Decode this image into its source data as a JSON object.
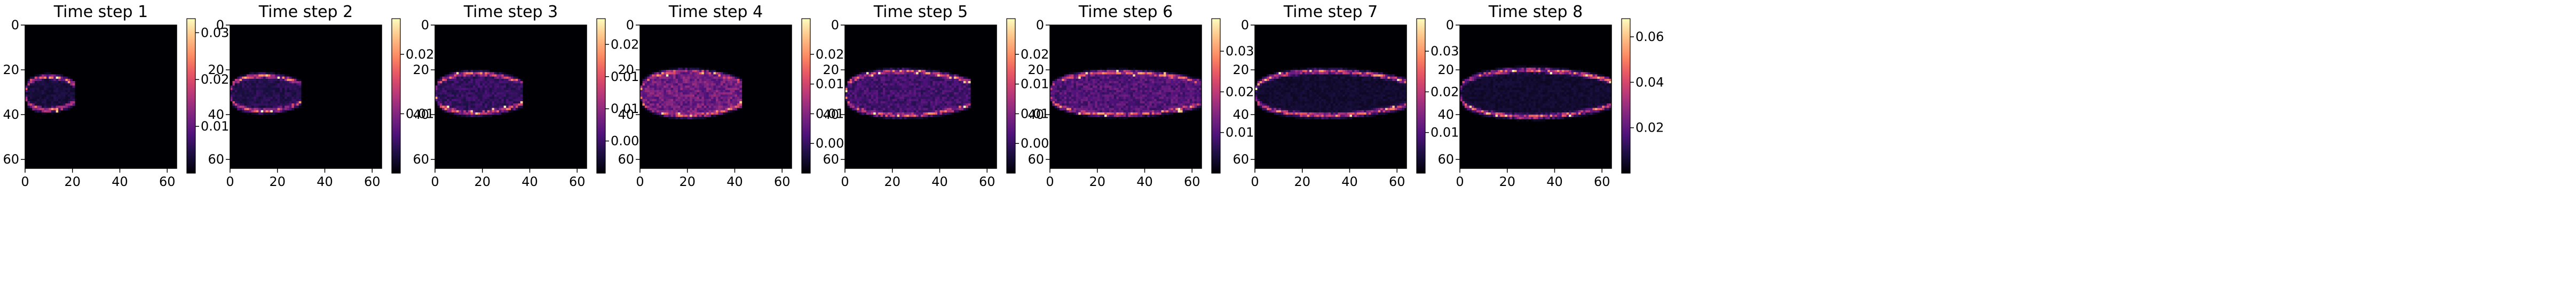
{
  "chart_data": [
    {
      "type": "heatmap",
      "title": "Time step 1",
      "xlim": [
        0,
        64
      ],
      "ylim": [
        64,
        0
      ],
      "xticks": [
        0,
        20,
        40,
        60
      ],
      "yticks": [
        0,
        20,
        40,
        60
      ],
      "colorbar": {
        "ticks": [
          0.01,
          0.02,
          0.03
        ],
        "tick_labels": [
          "0.01",
          "0.02",
          "0.03"
        ],
        "vmin": 0.0,
        "vmax": 0.033
      },
      "colormap": "magma",
      "plume": {
        "length": 20,
        "max_width": 10,
        "amplitude": 0.033,
        "interior": 0.15
      }
    },
    {
      "type": "heatmap",
      "title": "Time step 2",
      "xlim": [
        0,
        64
      ],
      "ylim": [
        64,
        0
      ],
      "xticks": [
        0,
        20,
        40,
        60
      ],
      "yticks": [
        0,
        20,
        40,
        60
      ],
      "colorbar": {
        "ticks": [
          0.01,
          0.02
        ],
        "tick_labels": [
          "0.01",
          "0.02"
        ],
        "vmin": 0.0,
        "vmax": 0.026
      },
      "colormap": "magma",
      "plume": {
        "length": 29,
        "max_width": 11,
        "amplitude": 0.026,
        "interior": 0.2
      }
    },
    {
      "type": "heatmap",
      "title": "Time step 3",
      "xlim": [
        0,
        64
      ],
      "ylim": [
        64,
        0
      ],
      "xticks": [
        0,
        20,
        40,
        60
      ],
      "yticks": [
        0,
        20,
        40,
        60
      ],
      "colorbar": {
        "ticks": [
          0.005,
          0.01,
          0.015,
          0.02
        ],
        "tick_labels": [
          "0.005",
          "0.010",
          "0.015",
          "0.020"
        ],
        "vmin": 0.0,
        "vmax": 0.024
      },
      "colormap": "magma",
      "plume": {
        "length": 36,
        "max_width": 13,
        "amplitude": 0.024,
        "interior": 0.25
      }
    },
    {
      "type": "heatmap",
      "title": "Time step 4",
      "xlim": [
        0,
        64
      ],
      "ylim": [
        64,
        0
      ],
      "xticks": [
        0,
        20,
        40,
        60
      ],
      "yticks": [
        0,
        20,
        40,
        60
      ],
      "colorbar": {
        "ticks": [
          0.005,
          0.01,
          0.015,
          0.02
        ],
        "tick_labels": [
          "0.005",
          "0.010",
          "0.015",
          "0.020"
        ],
        "vmin": 0.0,
        "vmax": 0.026
      },
      "colormap": "magma",
      "plume": {
        "length": 42,
        "max_width": 15,
        "amplitude": 0.026,
        "interior": 0.45
      }
    },
    {
      "type": "heatmap",
      "title": "Time step 5",
      "xlim": [
        0,
        64
      ],
      "ylim": [
        64,
        0
      ],
      "xticks": [
        0,
        20,
        40,
        60
      ],
      "yticks": [
        0,
        20,
        40,
        60
      ],
      "colorbar": {
        "ticks": [
          0.005,
          0.01,
          0.015,
          0.02
        ],
        "tick_labels": [
          "0.005",
          "0.010",
          "0.015",
          "0.020"
        ],
        "vmin": 0.0,
        "vmax": 0.026
      },
      "colormap": "magma",
      "plume": {
        "length": 52,
        "max_width": 15,
        "amplitude": 0.026,
        "interior": 0.3
      }
    },
    {
      "type": "heatmap",
      "title": "Time step 6",
      "xlim": [
        0,
        64
      ],
      "ylim": [
        64,
        0
      ],
      "xticks": [
        0,
        20,
        40,
        60
      ],
      "yticks": [
        0,
        20,
        40,
        60
      ],
      "colorbar": {
        "ticks": [
          0.01,
          0.02,
          0.03
        ],
        "tick_labels": [
          "0.01",
          "0.02",
          "0.03"
        ],
        "vmin": 0.0,
        "vmax": 0.038
      },
      "colormap": "magma",
      "plume": {
        "length": 63,
        "max_width": 14,
        "amplitude": 0.038,
        "interior": 0.35
      }
    },
    {
      "type": "heatmap",
      "title": "Time step 7",
      "xlim": [
        0,
        64
      ],
      "ylim": [
        64,
        0
      ],
      "xticks": [
        0,
        20,
        40,
        60
      ],
      "yticks": [
        0,
        20,
        40,
        60
      ],
      "colorbar": {
        "ticks": [
          0.01,
          0.02,
          0.03
        ],
        "tick_labels": [
          "0.01",
          "0.02",
          "0.03"
        ],
        "vmin": 0.0,
        "vmax": 0.038
      },
      "colormap": "magma",
      "plume": {
        "length": 64,
        "max_width": 15,
        "amplitude": 0.038,
        "interior": 0.12
      }
    },
    {
      "type": "heatmap",
      "title": "Time step 8",
      "xlim": [
        0,
        64
      ],
      "ylim": [
        64,
        0
      ],
      "xticks": [
        0,
        20,
        40,
        60
      ],
      "yticks": [
        0,
        20,
        40,
        60
      ],
      "colorbar": {
        "ticks": [
          0.02,
          0.04,
          0.06
        ],
        "tick_labels": [
          "0.02",
          "0.04",
          "0.06"
        ],
        "vmin": 0.0,
        "vmax": 0.068
      },
      "colormap": "magma",
      "plume": {
        "length": 64,
        "max_width": 16,
        "amplitude": 0.068,
        "interior": 0.12
      }
    }
  ]
}
